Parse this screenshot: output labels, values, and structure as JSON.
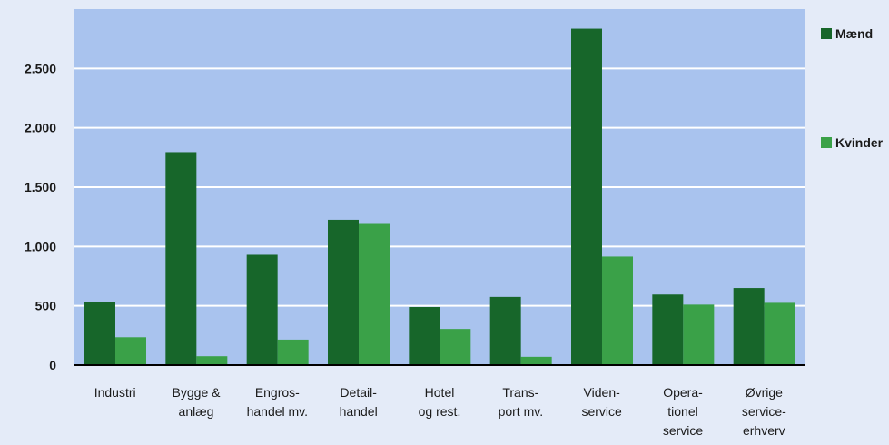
{
  "chart_data": {
    "type": "bar",
    "categories": [
      [
        "Industri"
      ],
      [
        "Bygge &",
        "anlæg"
      ],
      [
        "Engros-",
        "handel mv."
      ],
      [
        "Detail-",
        "handel"
      ],
      [
        "Hotel",
        "og rest."
      ],
      [
        "Trans-",
        "port mv."
      ],
      [
        "Viden-",
        "service"
      ],
      [
        "Opera-",
        "tionel",
        "service"
      ],
      [
        "Øvrige",
        "service-",
        "erhverv"
      ]
    ],
    "series": [
      {
        "name": "Mænd",
        "color": "#17662a",
        "values": [
          535,
          1795,
          930,
          1225,
          490,
          575,
          2835,
          595,
          650
        ]
      },
      {
        "name": "Kvinder",
        "color": "#3aa148",
        "values": [
          235,
          75,
          215,
          1190,
          305,
          70,
          915,
          510,
          525
        ]
      }
    ],
    "yticks": [
      0,
      500,
      1000,
      1500,
      2000,
      2500
    ],
    "ytick_labels": [
      "0",
      "500",
      "1.000",
      "1.500",
      "2.000",
      "2.500"
    ],
    "ylim": [
      0,
      3000
    ],
    "grid": true,
    "plot_background": "#a9c3ee",
    "gridline_color": "#ffffff",
    "legend_position": "right"
  }
}
